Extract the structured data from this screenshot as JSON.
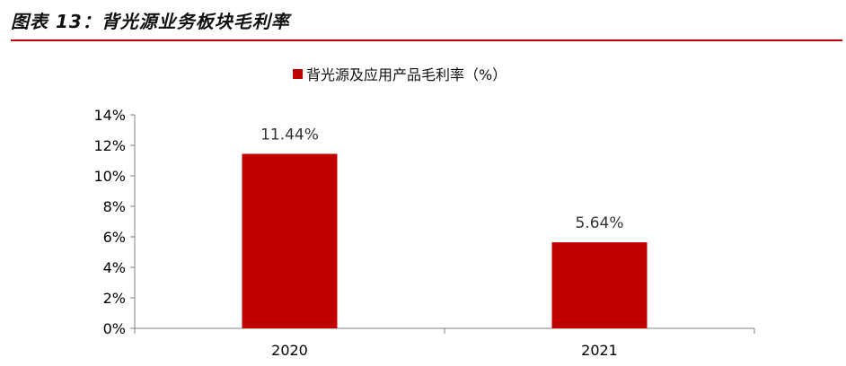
{
  "figure_title": "图表 13：背光源业务板块毛利率",
  "colors": {
    "accent_rule": "#c00000",
    "bar": "#c00000"
  },
  "chart_data": {
    "type": "bar",
    "categories": [
      "2020",
      "2021"
    ],
    "series": [
      {
        "name": "背光源及应用产品毛利率（%）",
        "values": [
          11.44,
          5.64
        ],
        "labels": [
          "11.44%",
          "5.64%"
        ]
      }
    ],
    "yticks": [
      "0%",
      "2%",
      "4%",
      "6%",
      "8%",
      "10%",
      "12%",
      "14%"
    ],
    "ylim": [
      0,
      14
    ],
    "legend": "top-center",
    "grid": false
  }
}
